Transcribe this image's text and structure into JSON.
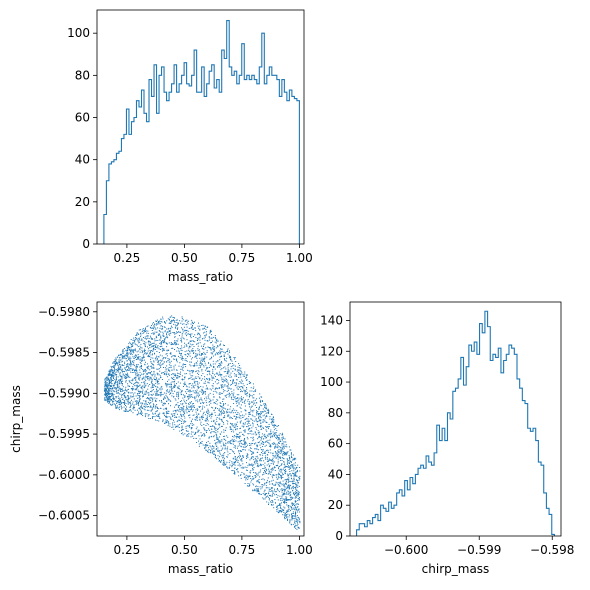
{
  "colors": {
    "series": "#1f77b4",
    "axes": "#000000",
    "background": "#ffffff"
  },
  "chart_data": [
    {
      "type": "histogram",
      "panel": "top-left",
      "xlabel": "mass_ratio",
      "ylabel": "",
      "xlim": [
        0.12,
        1.02
      ],
      "ylim": [
        0,
        111
      ],
      "xticks": [
        0.25,
        0.5,
        0.75,
        1.0
      ],
      "xtick_labels": [
        "0.25",
        "0.50",
        "0.75",
        "1.00"
      ],
      "yticks": [
        0,
        20,
        40,
        60,
        80,
        100
      ],
      "ytick_labels": [
        "0",
        "20",
        "40",
        "60",
        "80",
        "100"
      ],
      "bins": {
        "start": 0.15,
        "end": 1.0
      },
      "counts": [
        14,
        30,
        38,
        39,
        40,
        43,
        44,
        50,
        52,
        64,
        52,
        58,
        60,
        68,
        65,
        73,
        62,
        58,
        78,
        70,
        85,
        62,
        80,
        84,
        72,
        68,
        72,
        76,
        85,
        72,
        76,
        80,
        86,
        76,
        75,
        80,
        92,
        72,
        72,
        84,
        70,
        76,
        82,
        85,
        74,
        78,
        72,
        92,
        88,
        106,
        84,
        80,
        82,
        76,
        80,
        95,
        78,
        80,
        78,
        80,
        78,
        76,
        84,
        100,
        76,
        80,
        84,
        80,
        80,
        78,
        70,
        78,
        72,
        68,
        73,
        70,
        69,
        68
      ]
    },
    {
      "type": "scatter",
      "panel": "bottom-left",
      "xlabel": "mass_ratio",
      "ylabel": "chirp_mass",
      "xlim": [
        0.12,
        1.02
      ],
      "ylim": [
        -0.60075,
        -0.59788
      ],
      "xticks": [
        0.25,
        0.5,
        0.75,
        1.0
      ],
      "xtick_labels": [
        "0.25",
        "0.50",
        "0.75",
        "1.00"
      ],
      "yticks": [
        -0.598,
        -0.5985,
        -0.599,
        -0.5995,
        -0.6,
        -0.6005
      ],
      "ytick_labels": [
        "−0.5980",
        "−0.5985",
        "−0.5990",
        "−0.5995",
        "−0.6000",
        "−0.6005"
      ],
      "point_count": 5000,
      "region": {
        "x_range": [
          0.15,
          1.0
        ],
        "upper_edge": [
          [
            0.15,
            -0.59883
          ],
          [
            0.2,
            -0.59855
          ],
          [
            0.3,
            -0.59822
          ],
          [
            0.4,
            -0.59806
          ],
          [
            0.45,
            -0.59804
          ],
          [
            0.5,
            -0.59806
          ],
          [
            0.6,
            -0.59818
          ],
          [
            0.7,
            -0.59848
          ],
          [
            0.8,
            -0.59888
          ],
          [
            0.9,
            -0.59935
          ],
          [
            0.95,
            -0.59962
          ],
          [
            1.0,
            -0.5999
          ]
        ],
        "lower_edge": [
          [
            0.15,
            -0.59908
          ],
          [
            0.2,
            -0.59918
          ],
          [
            0.3,
            -0.59927
          ],
          [
            0.4,
            -0.59935
          ],
          [
            0.5,
            -0.59952
          ],
          [
            0.6,
            -0.59972
          ],
          [
            0.7,
            -0.59995
          ],
          [
            0.8,
            -0.6002
          ],
          [
            0.9,
            -0.60045
          ],
          [
            1.0,
            -0.6007
          ]
        ]
      }
    },
    {
      "type": "histogram",
      "panel": "bottom-right",
      "xlabel": "chirp_mass",
      "ylabel": "",
      "xlim": [
        -0.60077,
        -0.59788
      ],
      "ylim": [
        0,
        152
      ],
      "xticks": [
        -0.6,
        -0.599,
        -0.598
      ],
      "xtick_labels": [
        "−0.600",
        "−0.599",
        "−0.598"
      ],
      "yticks": [
        0,
        20,
        40,
        60,
        80,
        100,
        120,
        140
      ],
      "ytick_labels": [
        "0",
        "20",
        "40",
        "60",
        "80",
        "100",
        "120",
        "140"
      ],
      "bins": {
        "start": -0.60068,
        "end": -0.59797
      },
      "counts": [
        4,
        8,
        8,
        6,
        10,
        8,
        12,
        14,
        10,
        20,
        18,
        16,
        22,
        18,
        20,
        28,
        30,
        26,
        36,
        30,
        38,
        34,
        40,
        44,
        46,
        44,
        52,
        48,
        46,
        54,
        72,
        62,
        70,
        62,
        80,
        76,
        94,
        96,
        102,
        116,
        98,
        110,
        124,
        120,
        126,
        118,
        138,
        132,
        146,
        136,
        114,
        118,
        116,
        122,
        106,
        114,
        118,
        124,
        122,
        118,
        102,
        96,
        88,
        86,
        70,
        68,
        70,
        62,
        48,
        46,
        28,
        18,
        14,
        1
      ]
    }
  ]
}
